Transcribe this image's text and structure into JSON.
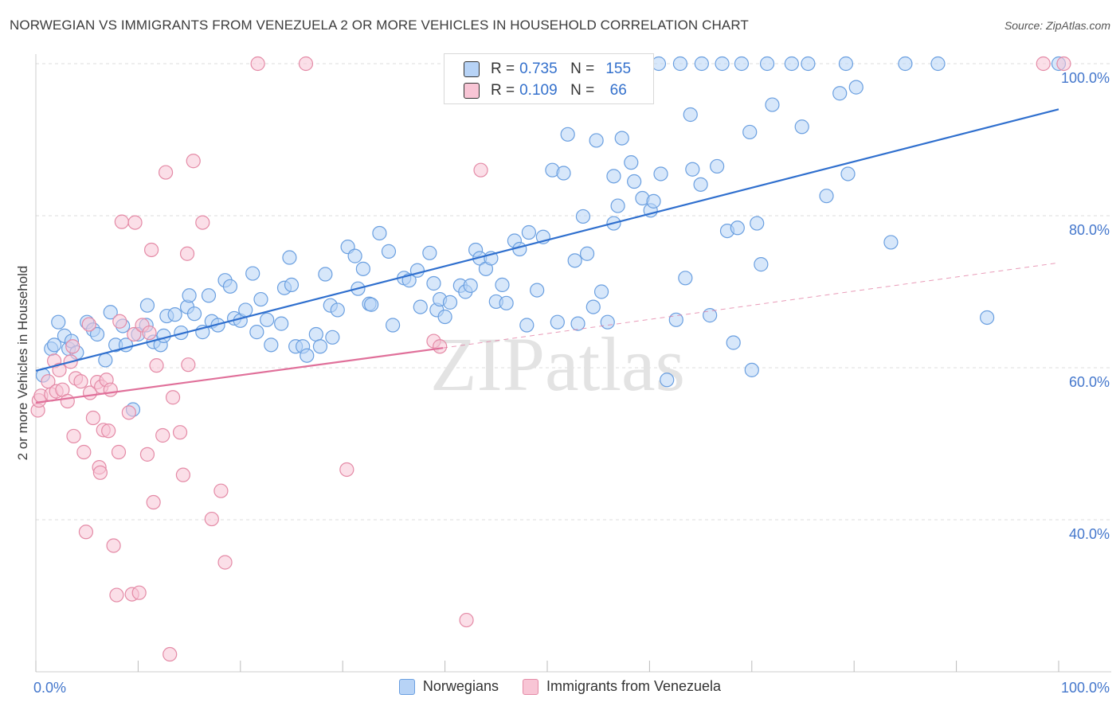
{
  "title": "NORWEGIAN VS IMMIGRANTS FROM VENEZUELA 2 OR MORE VEHICLES IN HOUSEHOLD CORRELATION CHART",
  "source": "Source: ZipAtlas.com",
  "watermark": "ZIPatlas",
  "colors": {
    "blue_fill": "#b7d3f6",
    "blue_stroke": "#6a9fe0",
    "blue_line": "#2f6fce",
    "pink_fill": "#f8c5d5",
    "pink_stroke": "#e48aa6",
    "pink_line": "#e0709a",
    "axis_text": "#4477cc",
    "grid": "#dddddd"
  },
  "stats_legend": {
    "rows": [
      {
        "r_label": "R =",
        "r_value": "0.735",
        "n_label": "N =",
        "n_value": "155"
      },
      {
        "r_label": "R =",
        "r_value": "0.109",
        "n_label": "N =",
        "n_value": "66"
      }
    ]
  },
  "legend": [
    "Norwegians",
    "Immigrants from Venezuela"
  ],
  "chart_data": {
    "type": "scatter",
    "xlabel": "",
    "ylabel": "2 or more Vehicles in Household",
    "xlim": [
      0,
      100
    ],
    "ylim": [
      20,
      100
    ],
    "x_tick_labels": [
      {
        "v": 0,
        "label": "0.0%"
      },
      {
        "v": 100,
        "label": "100.0%"
      }
    ],
    "y_tick_labels": [
      {
        "v": 100,
        "label": "100.0%"
      },
      {
        "v": 80,
        "label": "80.0%"
      },
      {
        "v": 60,
        "label": "60.0%"
      },
      {
        "v": 40,
        "label": "40.0%"
      }
    ],
    "grid": true,
    "legend_position": "bottom",
    "series": [
      {
        "name": "Norwegians",
        "color": "#6a9fe0",
        "trend": {
          "x": [
            0,
            100
          ],
          "y": [
            59.6,
            94.0
          ]
        },
        "points": [
          [
            0.7,
            59.0
          ],
          [
            1.5,
            62.5
          ],
          [
            1.8,
            63.0
          ],
          [
            2.2,
            66.0
          ],
          [
            2.8,
            64.2
          ],
          [
            3.2,
            62.5
          ],
          [
            3.5,
            63.5
          ],
          [
            4.0,
            62.0
          ],
          [
            5.0,
            66.0
          ],
          [
            5.6,
            65.0
          ],
          [
            6.0,
            64.4
          ],
          [
            6.8,
            61.0
          ],
          [
            7.3,
            67.3
          ],
          [
            7.8,
            63.0
          ],
          [
            8.5,
            65.5
          ],
          [
            8.8,
            63.0
          ],
          [
            9.5,
            54.5
          ],
          [
            10.0,
            64.4
          ],
          [
            10.8,
            65.6
          ],
          [
            10.9,
            68.2
          ],
          [
            11.5,
            63.4
          ],
          [
            12.2,
            63.0
          ],
          [
            12.5,
            64.2
          ],
          [
            12.8,
            66.8
          ],
          [
            13.6,
            67.0
          ],
          [
            14.2,
            64.6
          ],
          [
            14.8,
            68.0
          ],
          [
            15.0,
            69.5
          ],
          [
            15.5,
            67.1
          ],
          [
            16.3,
            64.7
          ],
          [
            16.9,
            69.5
          ],
          [
            17.2,
            66.1
          ],
          [
            17.8,
            65.6
          ],
          [
            18.5,
            71.5
          ],
          [
            19.0,
            70.7
          ],
          [
            19.4,
            66.5
          ],
          [
            20.0,
            66.2
          ],
          [
            20.5,
            67.6
          ],
          [
            21.2,
            72.4
          ],
          [
            21.6,
            64.7
          ],
          [
            22.0,
            69.0
          ],
          [
            22.6,
            66.3
          ],
          [
            23.0,
            63.0
          ],
          [
            24.0,
            65.8
          ],
          [
            24.3,
            70.5
          ],
          [
            24.8,
            74.5
          ],
          [
            25.0,
            70.9
          ],
          [
            25.4,
            62.8
          ],
          [
            26.1,
            62.8
          ],
          [
            26.5,
            61.6
          ],
          [
            27.4,
            64.4
          ],
          [
            27.8,
            62.8
          ],
          [
            28.3,
            72.3
          ],
          [
            28.8,
            68.2
          ],
          [
            29.0,
            64.0
          ],
          [
            29.5,
            67.6
          ],
          [
            30.5,
            75.9
          ],
          [
            31.2,
            74.7
          ],
          [
            31.5,
            70.4
          ],
          [
            32.0,
            73.0
          ],
          [
            32.6,
            68.4
          ],
          [
            32.8,
            68.3
          ],
          [
            33.6,
            77.7
          ],
          [
            34.5,
            75.3
          ],
          [
            34.9,
            65.6
          ],
          [
            36.0,
            71.8
          ],
          [
            36.5,
            71.5
          ],
          [
            37.3,
            72.8
          ],
          [
            37.6,
            68.0
          ],
          [
            38.5,
            75.1
          ],
          [
            38.9,
            71.1
          ],
          [
            39.2,
            67.6
          ],
          [
            39.5,
            69.0
          ],
          [
            40.0,
            66.7
          ],
          [
            40.5,
            68.6
          ],
          [
            41.5,
            70.8
          ],
          [
            42.0,
            70.0
          ],
          [
            42.5,
            70.8
          ],
          [
            43.0,
            75.5
          ],
          [
            43.4,
            74.4
          ],
          [
            44.0,
            73.0
          ],
          [
            44.5,
            74.4
          ],
          [
            45.0,
            68.7
          ],
          [
            45.6,
            70.9
          ],
          [
            46.0,
            68.5
          ],
          [
            46.8,
            76.7
          ],
          [
            47.3,
            75.6
          ],
          [
            48.0,
            65.6
          ],
          [
            48.2,
            77.8
          ],
          [
            49.0,
            70.2
          ],
          [
            49.6,
            77.2
          ],
          [
            50.5,
            86.0
          ],
          [
            51.0,
            66.0
          ],
          [
            51.6,
            85.6
          ],
          [
            52.0,
            90.7
          ],
          [
            52.7,
            74.1
          ],
          [
            53.0,
            65.8
          ],
          [
            53.5,
            79.9
          ],
          [
            53.9,
            75.0
          ],
          [
            54.5,
            68.0
          ],
          [
            54.8,
            89.9
          ],
          [
            55.3,
            70.0
          ],
          [
            55.9,
            66.0
          ],
          [
            56.5,
            85.2
          ],
          [
            56.5,
            79.0
          ],
          [
            56.9,
            81.3
          ],
          [
            57.3,
            90.2
          ],
          [
            58.2,
            87.0
          ],
          [
            58.5,
            84.5
          ],
          [
            59.3,
            82.3
          ],
          [
            60.1,
            80.7
          ],
          [
            60.4,
            81.9
          ],
          [
            60.9,
            100.0
          ],
          [
            61.1,
            85.5
          ],
          [
            61.7,
            58.4
          ],
          [
            62.6,
            66.3
          ],
          [
            63.0,
            100.0
          ],
          [
            63.5,
            71.8
          ],
          [
            64.0,
            93.3
          ],
          [
            64.2,
            86.1
          ],
          [
            65.0,
            84.1
          ],
          [
            65.1,
            100.0
          ],
          [
            65.9,
            66.9
          ],
          [
            66.6,
            86.5
          ],
          [
            67.1,
            100.0
          ],
          [
            67.6,
            78.0
          ],
          [
            68.2,
            63.3
          ],
          [
            68.6,
            78.4
          ],
          [
            69.0,
            100.0
          ],
          [
            69.8,
            91.0
          ],
          [
            70.0,
            59.7
          ],
          [
            70.5,
            79.0
          ],
          [
            70.9,
            73.6
          ],
          [
            71.5,
            100.0
          ],
          [
            72.0,
            94.6
          ],
          [
            73.9,
            100.0
          ],
          [
            74.9,
            91.7
          ],
          [
            75.5,
            100.0
          ],
          [
            77.3,
            82.6
          ],
          [
            78.6,
            96.1
          ],
          [
            79.2,
            100.0
          ],
          [
            79.4,
            85.5
          ],
          [
            80.2,
            96.9
          ],
          [
            83.6,
            76.5
          ],
          [
            85.0,
            100.0
          ],
          [
            88.2,
            100.0
          ],
          [
            93.0,
            66.6
          ],
          [
            100.0,
            100.0
          ]
        ]
      },
      {
        "name": "Immigrants from Venezuela",
        "color": "#e48aa6",
        "trend": {
          "x": [
            0,
            39.8
          ],
          "y": [
            55.4,
            62.6
          ]
        },
        "trend_dashed": {
          "x": [
            39.8,
            100
          ],
          "y": [
            62.6,
            73.8
          ]
        },
        "points": [
          [
            0.2,
            54.4
          ],
          [
            0.3,
            55.7
          ],
          [
            0.5,
            56.3
          ],
          [
            1.2,
            58.2
          ],
          [
            1.5,
            56.5
          ],
          [
            1.8,
            60.9
          ],
          [
            2.0,
            56.9
          ],
          [
            2.3,
            59.7
          ],
          [
            2.6,
            57.1
          ],
          [
            3.1,
            55.6
          ],
          [
            3.4,
            60.8
          ],
          [
            3.6,
            62.8
          ],
          [
            3.7,
            51.0
          ],
          [
            3.9,
            58.6
          ],
          [
            4.4,
            58.2
          ],
          [
            4.7,
            48.9
          ],
          [
            4.9,
            38.4
          ],
          [
            5.2,
            65.7
          ],
          [
            5.3,
            56.7
          ],
          [
            5.6,
            53.4
          ],
          [
            6.0,
            58.1
          ],
          [
            6.2,
            46.9
          ],
          [
            6.3,
            46.2
          ],
          [
            6.4,
            57.5
          ],
          [
            6.6,
            51.8
          ],
          [
            6.9,
            58.4
          ],
          [
            7.1,
            51.7
          ],
          [
            7.3,
            57.1
          ],
          [
            7.6,
            36.6
          ],
          [
            7.9,
            30.1
          ],
          [
            8.1,
            48.9
          ],
          [
            8.2,
            66.1
          ],
          [
            8.4,
            79.2
          ],
          [
            9.1,
            54.1
          ],
          [
            9.4,
            30.2
          ],
          [
            9.6,
            64.4
          ],
          [
            9.7,
            79.1
          ],
          [
            10.1,
            30.4
          ],
          [
            10.4,
            65.6
          ],
          [
            10.9,
            48.6
          ],
          [
            11.1,
            64.6
          ],
          [
            11.3,
            75.5
          ],
          [
            11.5,
            42.3
          ],
          [
            11.8,
            60.3
          ],
          [
            12.4,
            51.1
          ],
          [
            12.7,
            85.7
          ],
          [
            13.1,
            22.3
          ],
          [
            13.4,
            56.1
          ],
          [
            14.1,
            51.5
          ],
          [
            14.4,
            45.9
          ],
          [
            14.8,
            75.0
          ],
          [
            14.9,
            60.4
          ],
          [
            15.4,
            87.2
          ],
          [
            16.3,
            79.1
          ],
          [
            17.2,
            40.1
          ],
          [
            18.1,
            43.8
          ],
          [
            18.5,
            34.4
          ],
          [
            21.7,
            100.0
          ],
          [
            26.4,
            100.0
          ],
          [
            30.4,
            46.6
          ],
          [
            38.9,
            63.5
          ],
          [
            39.5,
            62.8
          ],
          [
            42.1,
            26.8
          ],
          [
            43.5,
            86.0
          ],
          [
            98.5,
            100.0
          ],
          [
            100.5,
            100.0
          ]
        ]
      }
    ]
  }
}
